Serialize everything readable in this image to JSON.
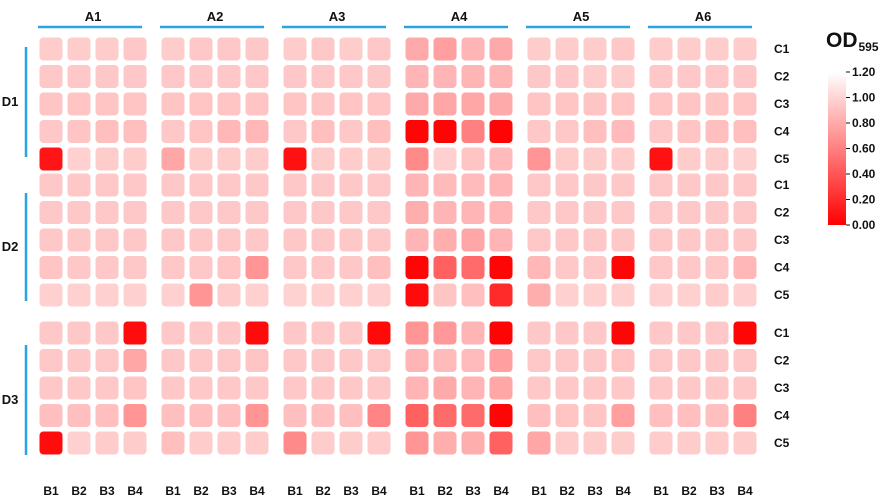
{
  "chart_data": {
    "type": "heatmap",
    "legend_title": {
      "main": "OD",
      "subscript": "595"
    },
    "colorbar": {
      "min": 0.0,
      "max": 1.2,
      "ticks": [
        "0.00",
        "0.20",
        "0.40",
        "0.60",
        "0.80",
        "1.00",
        "1.20"
      ],
      "low_color": "#ff0000",
      "high_color": "#ffffff"
    },
    "top_groups": [
      "A1",
      "A2",
      "A3",
      "A4",
      "A5",
      "A6"
    ],
    "column_labels": [
      "B1",
      "B2",
      "B3",
      "B4"
    ],
    "side_groups": [
      "D1",
      "D2",
      "D3"
    ],
    "row_labels": [
      "C1",
      "C2",
      "C3",
      "C4",
      "C5"
    ],
    "colors": {
      "bracket": "#29a3e1"
    },
    "values": [
      [
        [
          0.96,
          0.96,
          0.96,
          0.94,
          0.96,
          0.94,
          0.94,
          0.94,
          0.96,
          0.94,
          0.96,
          0.94,
          0.8,
          0.75,
          0.85,
          0.8,
          0.96,
          0.96,
          0.96,
          0.94,
          0.96,
          0.96,
          0.96,
          0.96
        ],
        [
          0.94,
          0.94,
          0.94,
          0.94,
          0.94,
          0.94,
          0.94,
          0.94,
          0.94,
          0.94,
          0.94,
          0.94,
          0.85,
          0.85,
          0.85,
          0.85,
          0.94,
          0.94,
          0.96,
          0.96,
          0.94,
          0.94,
          0.94,
          0.94
        ],
        [
          0.92,
          0.92,
          0.92,
          0.92,
          0.92,
          0.92,
          0.92,
          0.92,
          0.92,
          0.92,
          0.92,
          0.92,
          0.8,
          0.78,
          0.78,
          0.8,
          0.92,
          0.92,
          0.92,
          0.92,
          0.92,
          0.92,
          0.92,
          0.92
        ],
        [
          0.94,
          0.92,
          0.9,
          0.9,
          0.94,
          0.92,
          0.86,
          0.86,
          0.94,
          0.9,
          0.94,
          0.9,
          0.03,
          0.02,
          0.6,
          0.02,
          0.94,
          0.94,
          0.9,
          0.88,
          0.94,
          0.92,
          0.9,
          0.9
        ],
        [
          0.1,
          0.98,
          0.96,
          0.96,
          0.78,
          0.96,
          0.96,
          0.96,
          0.08,
          0.96,
          0.96,
          0.96,
          0.65,
          0.98,
          0.92,
          0.88,
          0.7,
          0.96,
          0.96,
          0.96,
          0.08,
          0.96,
          0.96,
          0.98
        ]
      ],
      [
        [
          0.94,
          0.94,
          0.94,
          0.94,
          0.94,
          0.94,
          0.94,
          0.94,
          0.94,
          0.94,
          0.94,
          0.94,
          0.85,
          0.88,
          0.88,
          0.85,
          0.94,
          0.94,
          0.94,
          0.94,
          0.94,
          0.94,
          0.94,
          0.94
        ],
        [
          0.94,
          0.94,
          0.94,
          0.94,
          0.94,
          0.94,
          0.94,
          0.94,
          0.94,
          0.94,
          0.94,
          0.94,
          0.82,
          0.85,
          0.85,
          0.85,
          0.94,
          0.94,
          0.94,
          0.94,
          0.94,
          0.94,
          0.94,
          0.94
        ],
        [
          0.94,
          0.94,
          0.94,
          0.94,
          0.94,
          0.94,
          0.94,
          0.94,
          0.94,
          0.94,
          0.94,
          0.94,
          0.85,
          0.82,
          0.78,
          0.85,
          0.94,
          0.94,
          0.94,
          0.94,
          0.94,
          0.94,
          0.94,
          0.94
        ],
        [
          0.92,
          0.94,
          0.94,
          0.94,
          0.94,
          0.94,
          0.92,
          0.7,
          0.94,
          0.94,
          0.94,
          0.9,
          0.03,
          0.45,
          0.5,
          0.03,
          0.86,
          0.94,
          0.94,
          0.03,
          0.94,
          0.94,
          0.94,
          0.86
        ],
        [
          0.98,
          0.98,
          0.98,
          0.98,
          0.98,
          0.7,
          0.96,
          0.98,
          0.99,
          0.98,
          0.98,
          0.98,
          0.05,
          0.92,
          0.9,
          0.2,
          0.82,
          0.98,
          0.98,
          0.98,
          0.98,
          0.98,
          0.96,
          0.98
        ]
      ],
      [
        [
          0.94,
          0.94,
          0.94,
          0.06,
          0.94,
          0.94,
          0.94,
          0.05,
          0.94,
          0.94,
          0.94,
          0.04,
          0.7,
          0.72,
          0.85,
          0.02,
          0.94,
          0.94,
          0.94,
          0.03,
          0.94,
          0.94,
          0.94,
          0.03
        ],
        [
          0.94,
          0.94,
          0.94,
          0.78,
          0.94,
          0.94,
          0.94,
          0.92,
          0.94,
          0.94,
          0.94,
          0.94,
          0.85,
          0.88,
          0.88,
          0.75,
          0.94,
          0.94,
          0.94,
          0.92,
          0.94,
          0.94,
          0.94,
          0.94
        ],
        [
          0.94,
          0.94,
          0.94,
          0.92,
          0.94,
          0.94,
          0.94,
          0.94,
          0.94,
          0.94,
          0.94,
          0.94,
          0.85,
          0.8,
          0.85,
          0.78,
          0.94,
          0.94,
          0.94,
          0.94,
          0.94,
          0.94,
          0.94,
          0.94
        ],
        [
          0.9,
          0.9,
          0.9,
          0.7,
          0.9,
          0.9,
          0.9,
          0.7,
          0.9,
          0.9,
          0.9,
          0.62,
          0.45,
          0.5,
          0.5,
          0.03,
          0.9,
          0.92,
          0.92,
          0.75,
          0.9,
          0.9,
          0.9,
          0.6
        ],
        [
          0.06,
          0.98,
          0.96,
          0.96,
          0.9,
          0.96,
          0.96,
          0.96,
          0.65,
          0.96,
          0.96,
          0.96,
          0.7,
          0.82,
          0.82,
          0.45,
          0.78,
          0.96,
          0.96,
          0.96,
          0.96,
          0.96,
          0.96,
          0.96
        ]
      ]
    ]
  }
}
